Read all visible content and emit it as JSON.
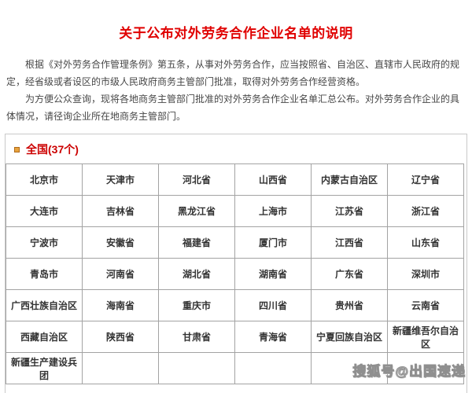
{
  "page": {
    "title": "关于公布对外劳务合作企业名单的说明",
    "paragraphs": [
      "根据《对外劳务合作管理条例》第五条，从事对外劳务合作，应当按照省、自治区、直辖市人民政府的规定，经省级或者设区的市级人民政府商务主管部门批准，取得对外劳务合作经营资格。",
      "为方便公众查询，现将各地商务主管部门批准的对外劳务合作企业名单汇总公布。对外劳务合作企业的具体情况，请径询企业所在地商务主管部门。"
    ]
  },
  "section": {
    "bullet_icon": "square-bullet",
    "heading": "全国(37个)"
  },
  "table": {
    "columns": 6,
    "rows": [
      [
        "北京市",
        "天津市",
        "河北省",
        "山西省",
        "内蒙古自治区",
        "辽宁省"
      ],
      [
        "大连市",
        "吉林省",
        "黑龙江省",
        "上海市",
        "江苏省",
        "浙江省"
      ],
      [
        "宁波市",
        "安徽省",
        "福建省",
        "厦门市",
        "江西省",
        "山东省"
      ],
      [
        "青岛市",
        "河南省",
        "湖北省",
        "湖南省",
        "广东省",
        "深圳市"
      ],
      [
        "广西壮族自治区",
        "海南省",
        "重庆市",
        "四川省",
        "贵州省",
        "云南省"
      ],
      [
        "西藏自治区",
        "陕西省",
        "甘肃省",
        "青海省",
        "宁夏回族自治区",
        "新疆维吾尔自治区"
      ],
      [
        "新疆生产建设兵团",
        "",
        "",
        "",
        "",
        ""
      ]
    ]
  },
  "watermark": {
    "text": "搜狐号@出国速递"
  },
  "colors": {
    "title_red": "#e00000",
    "heading_red": "#cc0000",
    "bullet_orange": "#e8a33d",
    "body_text": "#474747",
    "cell_text": "#333333",
    "table_border": "#a3a3a3",
    "box_border": "#c9c9c9",
    "watermark_gray": "#8f8f8f"
  }
}
